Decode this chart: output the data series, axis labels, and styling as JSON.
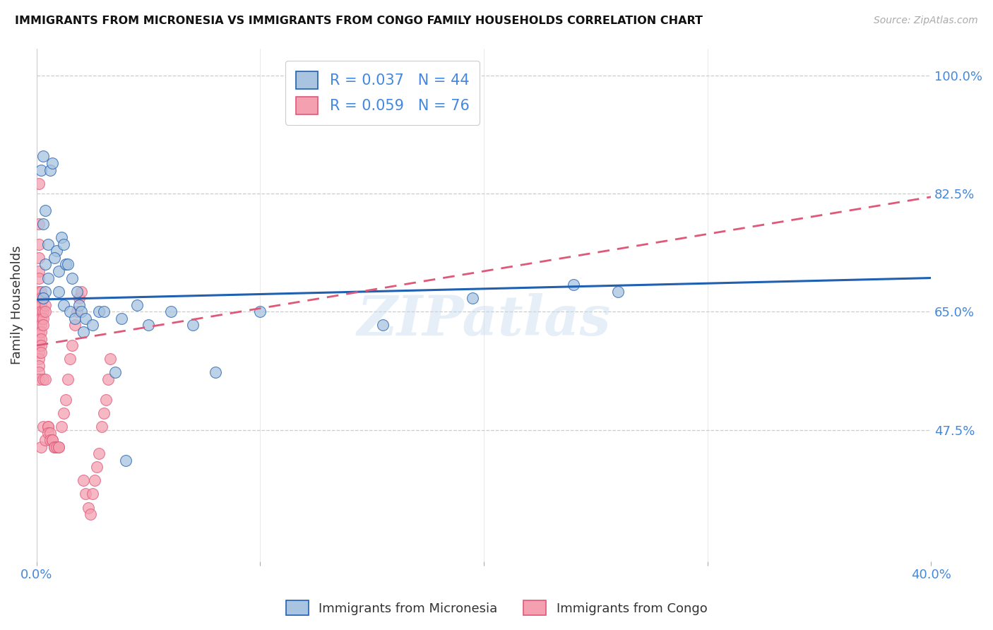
{
  "title": "IMMIGRANTS FROM MICRONESIA VS IMMIGRANTS FROM CONGO FAMILY HOUSEHOLDS CORRELATION CHART",
  "source": "Source: ZipAtlas.com",
  "ylabel": "Family Households",
  "y_tick_labels": [
    "100.0%",
    "82.5%",
    "65.0%",
    "47.5%"
  ],
  "y_tick_values": [
    1.0,
    0.825,
    0.65,
    0.475
  ],
  "xlim": [
    0.0,
    0.4
  ],
  "ylim": [
    0.28,
    1.04
  ],
  "micronesia_color": "#a8c4e0",
  "congo_color": "#f4a0b0",
  "micronesia_line_color": "#2060b0",
  "congo_line_color": "#e05878",
  "legend_micronesia": "Immigrants from Micronesia",
  "legend_congo": "Immigrants from Congo",
  "R_micronesia": 0.037,
  "N_micronesia": 44,
  "R_congo": 0.059,
  "N_congo": 76,
  "watermark": "ZIPatlas",
  "background_color": "#ffffff",
  "micronesia_x": [
    0.003,
    0.004,
    0.002,
    0.005,
    0.003,
    0.004,
    0.006,
    0.005,
    0.004,
    0.003,
    0.007,
    0.009,
    0.008,
    0.01,
    0.011,
    0.012,
    0.013,
    0.014,
    0.01,
    0.012,
    0.015,
    0.016,
    0.018,
    0.017,
    0.019,
    0.02,
    0.022,
    0.021,
    0.025,
    0.028,
    0.03,
    0.035,
    0.038,
    0.04,
    0.045,
    0.05,
    0.06,
    0.07,
    0.08,
    0.1,
    0.155,
    0.195,
    0.24,
    0.26
  ],
  "micronesia_y": [
    0.88,
    0.8,
    0.86,
    0.75,
    0.78,
    0.72,
    0.86,
    0.7,
    0.68,
    0.67,
    0.87,
    0.74,
    0.73,
    0.71,
    0.76,
    0.75,
    0.72,
    0.72,
    0.68,
    0.66,
    0.65,
    0.7,
    0.68,
    0.64,
    0.66,
    0.65,
    0.64,
    0.62,
    0.63,
    0.65,
    0.65,
    0.56,
    0.64,
    0.43,
    0.66,
    0.63,
    0.65,
    0.63,
    0.56,
    0.65,
    0.63,
    0.67,
    0.69,
    0.68
  ],
  "congo_x": [
    0.001,
    0.001,
    0.001,
    0.001,
    0.001,
    0.001,
    0.001,
    0.001,
    0.001,
    0.001,
    0.001,
    0.001,
    0.001,
    0.001,
    0.001,
    0.001,
    0.001,
    0.001,
    0.001,
    0.001,
    0.002,
    0.002,
    0.002,
    0.002,
    0.002,
    0.002,
    0.002,
    0.002,
    0.002,
    0.002,
    0.002,
    0.003,
    0.003,
    0.003,
    0.003,
    0.003,
    0.003,
    0.004,
    0.004,
    0.004,
    0.004,
    0.005,
    0.005,
    0.005,
    0.006,
    0.006,
    0.007,
    0.007,
    0.008,
    0.008,
    0.009,
    0.01,
    0.01,
    0.011,
    0.012,
    0.013,
    0.014,
    0.015,
    0.016,
    0.017,
    0.018,
    0.019,
    0.02,
    0.021,
    0.022,
    0.023,
    0.024,
    0.025,
    0.026,
    0.027,
    0.028,
    0.029,
    0.03,
    0.031,
    0.032,
    0.033
  ],
  "congo_y": [
    0.84,
    0.78,
    0.75,
    0.73,
    0.71,
    0.7,
    0.68,
    0.67,
    0.66,
    0.65,
    0.64,
    0.63,
    0.62,
    0.61,
    0.6,
    0.59,
    0.58,
    0.57,
    0.56,
    0.55,
    0.68,
    0.67,
    0.66,
    0.65,
    0.64,
    0.63,
    0.62,
    0.61,
    0.6,
    0.59,
    0.45,
    0.67,
    0.65,
    0.64,
    0.63,
    0.55,
    0.48,
    0.66,
    0.65,
    0.55,
    0.46,
    0.48,
    0.48,
    0.47,
    0.47,
    0.46,
    0.46,
    0.46,
    0.45,
    0.45,
    0.45,
    0.45,
    0.45,
    0.48,
    0.5,
    0.52,
    0.55,
    0.58,
    0.6,
    0.63,
    0.65,
    0.67,
    0.68,
    0.4,
    0.38,
    0.36,
    0.35,
    0.38,
    0.4,
    0.42,
    0.44,
    0.48,
    0.5,
    0.52,
    0.55,
    0.58
  ],
  "micronesia_trend_x": [
    0.0,
    0.4
  ],
  "micronesia_trend_y": [
    0.668,
    0.7
  ],
  "congo_trend_x": [
    0.0,
    0.4
  ],
  "congo_trend_y": [
    0.6,
    0.82
  ]
}
